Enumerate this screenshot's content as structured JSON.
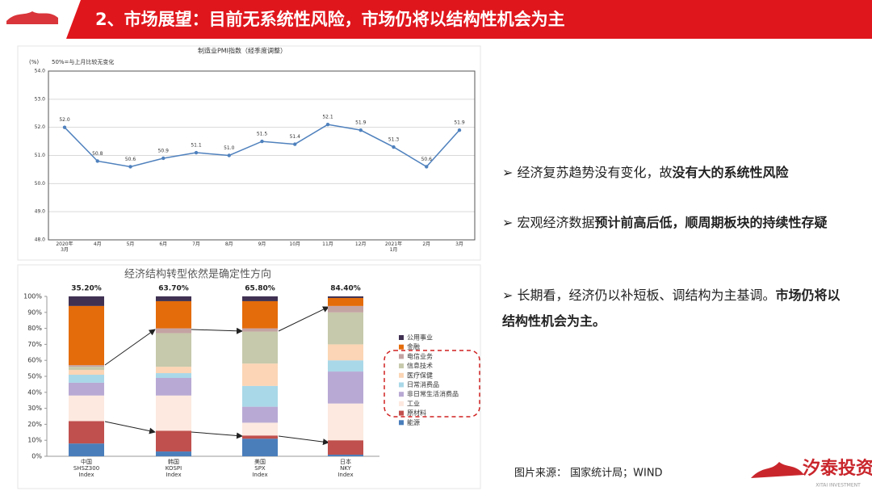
{
  "slide": {
    "title": "2、市场展望：目前无系统性风险，市场仍将以结构性机会为主",
    "bullets": [
      [
        {
          "text": "经济复苏趋势没有变化，故",
          "bold": false
        },
        {
          "text": "没有大的系统性风险",
          "bold": true
        }
      ],
      [
        {
          "text": "宏观经济数据",
          "bold": false
        },
        {
          "text": "预计前高后低，顺周期板块的持续性存疑",
          "bold": true
        }
      ],
      [
        {
          "text": "长期看，经济仍以补短板、调结构为主基调。",
          "bold": false
        },
        {
          "text": "市场仍将以结构性机会为主。",
          "bold": true
        }
      ]
    ],
    "source": "图片来源：  国家统计局；WIND",
    "logo": "汐泰投资",
    "logo_en": "XITAI INVESTMENT"
  },
  "chart_data": [
    {
      "type": "line",
      "title": "制造业PMI指数（经季度调整）",
      "y_label": "(%)",
      "annotation": "50%=与上月比较无变化",
      "categories": [
        "2020年\n3月",
        "4月",
        "5月",
        "6月",
        "7月",
        "8月",
        "9月",
        "10月",
        "11月",
        "12月",
        "2021年\n1月",
        "2月",
        "3月"
      ],
      "values": [
        52.0,
        50.8,
        50.6,
        50.9,
        51.1,
        51.0,
        51.5,
        51.4,
        52.1,
        51.9,
        51.3,
        50.6,
        51.9
      ],
      "value_labels": [
        "52.0",
        "50.8",
        "50.6",
        "50.9",
        "51.1",
        "51.0",
        "51.5",
        "51.4",
        "52.1",
        "51.9",
        "51.3",
        "50.6",
        "51.9"
      ],
      "color": "#4f81bd",
      "ylim": [
        48,
        54
      ],
      "yticks": [
        {
          "value": 48,
          "label": "48.0"
        },
        {
          "value": 49,
          "label": "49.0"
        },
        {
          "value": 50,
          "label": "50.0"
        },
        {
          "value": 51,
          "label": "51.0"
        },
        {
          "value": 52,
          "label": "52.0"
        },
        {
          "value": 53,
          "label": "53.0"
        },
        {
          "value": 54,
          "label": "54.0"
        }
      ],
      "grid": true
    },
    {
      "type": "stacked_bar",
      "title": "经济结构转型依然是确定性方向",
      "categories": [
        "中国\nSHSZ300\nIndex",
        "韩国\nKOSPI\nIndex",
        "美国\nSPX\nIndex",
        "日本\nNKY\nIndex"
      ],
      "annotations": [
        "35.20%",
        "63.70%",
        "65.80%",
        "84.40%"
      ],
      "series": [
        {
          "name": "能源",
          "color": "#4a7ebb",
          "values": [
            8,
            3,
            11,
            1
          ]
        },
        {
          "name": "原材料",
          "color": "#c0504d",
          "values": [
            14,
            13,
            2,
            9
          ]
        },
        {
          "name": "工业",
          "color": "#fde9e0",
          "values": [
            16,
            22,
            8,
            23
          ]
        },
        {
          "name": "非日常生活消费品",
          "color": "#b8a9d4",
          "values": [
            8,
            11,
            10,
            20
          ]
        },
        {
          "name": "日常消费品",
          "color": "#a9d8e8",
          "values": [
            5,
            3,
            13,
            7
          ]
        },
        {
          "name": "医疗保健",
          "color": "#fbd5b5",
          "values": [
            3,
            4,
            14,
            10
          ]
        },
        {
          "name": "信息技术",
          "color": "#c6c9ab",
          "values": [
            2,
            21,
            20,
            20
          ]
        },
        {
          "name": "电信业务",
          "color": "#c4a3a3",
          "values": [
            1,
            3,
            2,
            4
          ]
        },
        {
          "name": "金融",
          "color": "#e46c0a",
          "values": [
            37,
            17,
            17,
            5
          ]
        },
        {
          "name": "公用事业",
          "color": "#403152",
          "values": [
            6,
            3,
            3,
            1
          ]
        }
      ],
      "ylim": [
        0,
        100
      ],
      "yticks": [
        {
          "value": 0,
          "label": "0%"
        },
        {
          "value": 10,
          "label": "10%"
        },
        {
          "value": 20,
          "label": "20%"
        },
        {
          "value": 30,
          "label": "30%"
        },
        {
          "value": 40,
          "label": "40%"
        },
        {
          "value": 50,
          "label": "50%"
        },
        {
          "value": 60,
          "label": "60%"
        },
        {
          "value": 70,
          "label": "70%"
        },
        {
          "value": 80,
          "label": "80%"
        },
        {
          "value": 90,
          "label": "90%"
        },
        {
          "value": 100,
          "label": "100%"
        }
      ]
    }
  ]
}
